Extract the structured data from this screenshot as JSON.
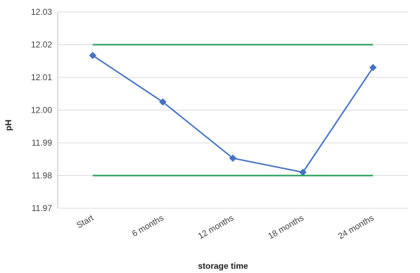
{
  "chart_data": {
    "type": "line",
    "categories": [
      "Start",
      "6 months",
      "12 months",
      "18 months",
      "24 months"
    ],
    "series": [
      {
        "values": [
          12.0167,
          12.0025,
          11.9853,
          11.981,
          12.013
        ],
        "color": "#4472c4",
        "marker": "diamond"
      },
      {
        "values": [
          12.02,
          12.02,
          12.02,
          12.02,
          12.02
        ],
        "color": "#1a9a50"
      },
      {
        "values": [
          11.98,
          11.98,
          11.98,
          11.98,
          11.98
        ],
        "color": "#1a9a50"
      }
    ],
    "xlabel": "storage time",
    "ylabel": "pH",
    "ylim": [
      11.97,
      12.03
    ],
    "yticks": [
      "11.97",
      "11.98",
      "11.99",
      "12.00",
      "12.01",
      "12.02",
      "12.03"
    ],
    "grid": true
  }
}
